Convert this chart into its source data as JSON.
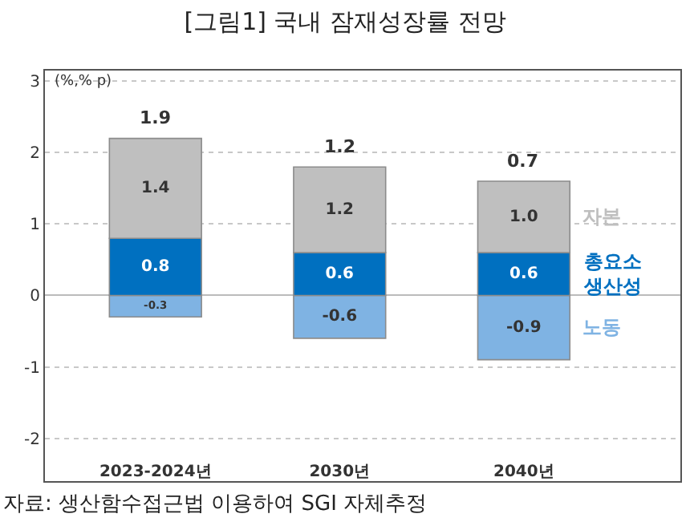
{
  "chart_data": {
    "type": "bar",
    "title": "[그림1] 국내 잠재성장률 전망",
    "ylabel": "(%,% p)",
    "stacked": true,
    "categories": [
      "2023-2024년",
      "2030년",
      "2040년"
    ],
    "series": [
      {
        "name": "노동",
        "color": "#7fb3e3",
        "values": [
          -0.3,
          -0.6,
          -0.9
        ],
        "value_labels": [
          "-0.3",
          "-0.6",
          "-0.9"
        ]
      },
      {
        "name": "총요소\n생산성",
        "color": "#0070c0",
        "values": [
          0.8,
          0.6,
          0.6
        ],
        "value_labels": [
          "0.8",
          "0.6",
          "0.6"
        ]
      },
      {
        "name": "자본",
        "color": "#bfbfbf",
        "values": [
          1.4,
          1.2,
          1.0
        ],
        "value_labels": [
          "1.4",
          "1.2",
          "1.0"
        ]
      }
    ],
    "totals": [
      "1.9",
      "1.2",
      "0.7"
    ],
    "ylim": [
      -2.6,
      3.15
    ],
    "yticks": [
      -2,
      -1,
      0,
      1,
      2,
      3
    ],
    "grid": "y",
    "legend": "right",
    "annotations": [
      "자료: 생산함수접근법 이용하여 SGI 자체추정"
    ]
  }
}
